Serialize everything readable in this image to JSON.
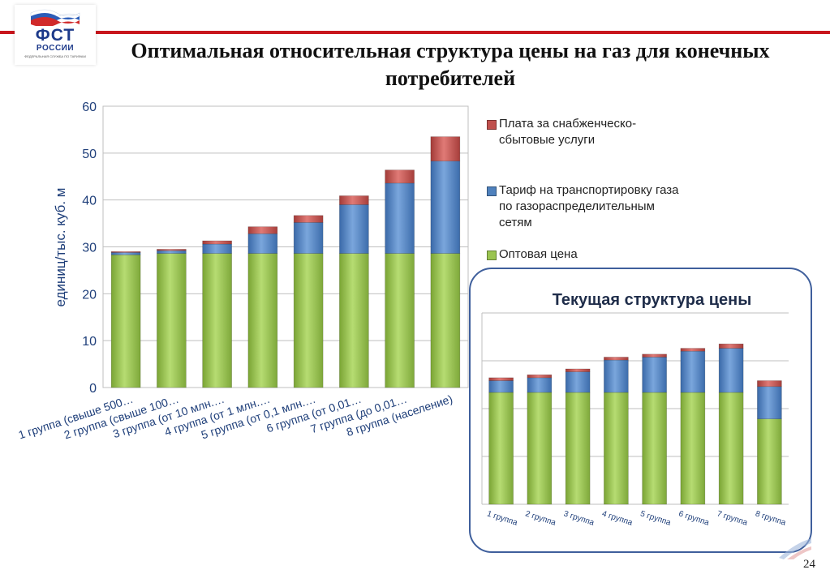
{
  "header": {
    "logo_text": "ФСТ",
    "logo_subtitle": "РОССИИ",
    "logo_fine_print": "ФЕДЕРАЛЬНАЯ СЛУЖБА ПО ТАРИФАМ",
    "title": "Оптимальная относительная структура цены на газ для конечных потребителей"
  },
  "page_number": "24",
  "colors": {
    "green": "#9ac450",
    "blue": "#4f81bd",
    "red": "#c0504d",
    "accent_rule": "#c8161d",
    "inset_border": "#3f5f9c"
  },
  "inset": {
    "title": "Текущая структура цены"
  },
  "chart_data": [
    {
      "type": "bar",
      "stacked": true,
      "ylabel": "единиц/тыс. куб. м",
      "ylim": [
        0,
        60
      ],
      "yticks": [
        "0",
        "10",
        "20",
        "30",
        "40",
        "50",
        "60"
      ],
      "grid": true,
      "legend_position": "right",
      "categories": [
        "1 группа (свыше 500…",
        "2 группа (свыше 100…",
        "3 группа (от 10 млн.…",
        "4 группа (от 1 млн.…",
        "5 группа (от 0,1 млн.…",
        "6 группа (от 0,01…",
        "7 группа (до 0,01…",
        "8 группа (население)"
      ],
      "series": [
        {
          "name": "Оптовая цена",
          "color": "#9ac450",
          "values": [
            28.3,
            28.6,
            28.6,
            28.6,
            28.6,
            28.6,
            28.6,
            28.6
          ]
        },
        {
          "name": "Тариф на транспортировку газа по газораспределительным сетям",
          "color": "#4f81bd",
          "values": [
            0.5,
            0.6,
            2.0,
            4.2,
            6.6,
            10.4,
            15.0,
            19.7
          ]
        },
        {
          "name": "Плата за снабженческо-сбытовые услуги",
          "color": "#c0504d",
          "values": [
            0.2,
            0.3,
            0.7,
            1.5,
            1.5,
            1.9,
            2.8,
            5.2
          ]
        }
      ],
      "legend_order": [
        "Плата за снабженческо-сбытовые услуги",
        "Тариф на транспортировку газа по газораспределительным сетям",
        "Оптовая цена"
      ]
    },
    {
      "type": "bar",
      "stacked": true,
      "title": "Текущая структура цены",
      "ylim": [
        0,
        6.5
      ],
      "grid": true,
      "categories": [
        "1 группа",
        "2 группа",
        "3 группа",
        "4 группа",
        "5 группа",
        "6 группа",
        "7 группа",
        "8 группа"
      ],
      "series": [
        {
          "color": "#9ac450",
          "values": [
            3.8,
            3.8,
            3.8,
            3.8,
            3.8,
            3.8,
            3.8,
            2.9
          ]
        },
        {
          "color": "#4f81bd",
          "values": [
            0.4,
            0.5,
            0.7,
            1.1,
            1.2,
            1.4,
            1.5,
            1.1
          ]
        },
        {
          "color": "#c0504d",
          "values": [
            0.1,
            0.1,
            0.1,
            0.1,
            0.1,
            0.1,
            0.15,
            0.2
          ]
        }
      ]
    }
  ]
}
